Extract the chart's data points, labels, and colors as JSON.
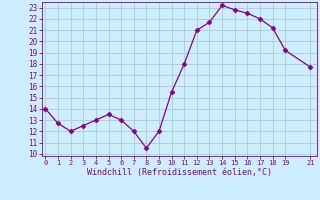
{
  "x": [
    0,
    1,
    2,
    3,
    4,
    5,
    6,
    7,
    8,
    9,
    10,
    11,
    12,
    13,
    14,
    15,
    16,
    17,
    18,
    19,
    21
  ],
  "y": [
    14,
    12.7,
    12,
    12.5,
    13,
    13.5,
    13,
    12,
    10.5,
    12,
    15.5,
    18,
    21,
    21.7,
    23.2,
    22.8,
    22.5,
    22,
    21.2,
    19.2,
    17.7
  ],
  "line_color": "#880088",
  "marker": "D",
  "marker_size": 2.5,
  "bg_color": "#cceeff",
  "grid_color": "#aacccc",
  "xlabel": "Windchill (Refroidissement éolien,°C)",
  "xlabel_color": "#880088",
  "tick_color": "#880088",
  "ylim": [
    9.8,
    23.5
  ],
  "yticks": [
    10,
    11,
    12,
    13,
    14,
    15,
    16,
    17,
    18,
    19,
    20,
    21,
    22,
    23
  ],
  "xticks": [
    0,
    1,
    2,
    3,
    4,
    5,
    6,
    7,
    8,
    9,
    10,
    11,
    12,
    13,
    14,
    15,
    16,
    17,
    18,
    19,
    21
  ],
  "xlim": [
    -0.3,
    21.5
  ]
}
